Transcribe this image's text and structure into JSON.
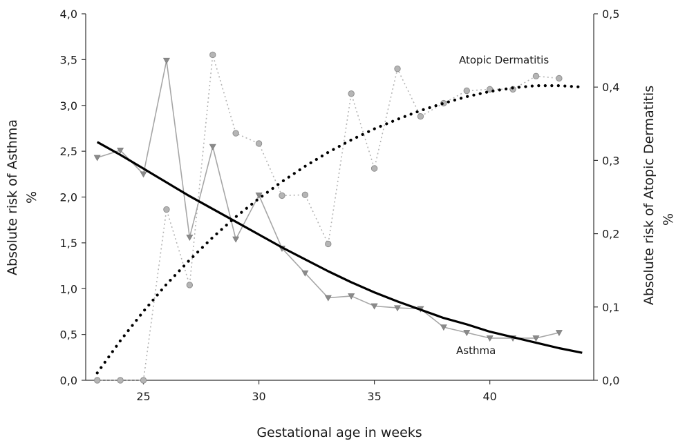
{
  "chart_data": {
    "type": "line",
    "xlabel": "Gestational age in weeks",
    "ylabel_left": "Absolute risk of Asthma",
    "ylabel_left_unit": "%",
    "ylabel_right": "Absolute risk of Atopic Dermatitis",
    "ylabel_right_unit": "%",
    "xlim": [
      22.5,
      44.5
    ],
    "ylim_left": [
      0,
      4.0
    ],
    "ylim_right": [
      0,
      0.5
    ],
    "x_ticks": [
      25,
      30,
      35,
      40
    ],
    "x_tick_labels": [
      "25",
      "30",
      "35",
      "40"
    ],
    "y_left_ticks": [
      0,
      0.5,
      1.0,
      1.5,
      2.0,
      2.5,
      3.0,
      3.5,
      4.0
    ],
    "y_left_tick_labels": [
      "0,0",
      "0,5",
      "1,0",
      "1,5",
      "2,0",
      "2,5",
      "3,0",
      "3,5",
      "4,0"
    ],
    "y_right_ticks": [
      0,
      0.1,
      0.2,
      0.3,
      0.4,
      0.5
    ],
    "y_right_tick_labels": [
      "0,0",
      "0,1",
      "0,2",
      "0,3",
      "0,4",
      "0,5"
    ],
    "grid": false,
    "annotations": {
      "atopic": "Atopic Dermatitis",
      "asthma": "Asthma"
    },
    "series": [
      {
        "id": "asthma-observed",
        "axis": "left",
        "style": "solid-thin-triangles",
        "color": "#a6a6a6",
        "x": [
          23,
          24,
          25,
          26,
          27,
          28,
          29,
          30,
          31,
          32,
          33,
          34,
          35,
          36,
          37,
          38,
          39,
          40,
          41,
          42,
          43
        ],
        "y": [
          2.43,
          2.51,
          2.25,
          3.49,
          1.56,
          2.55,
          1.54,
          2.02,
          1.44,
          1.17,
          0.9,
          0.92,
          0.81,
          0.79,
          0.78,
          0.58,
          0.52,
          0.46,
          0.46,
          0.46,
          0.52
        ]
      },
      {
        "id": "asthma-fitted",
        "axis": "left",
        "style": "solid-thick",
        "color": "#000000",
        "x": [
          23,
          24,
          25,
          26,
          27,
          28,
          29,
          30,
          31,
          32,
          33,
          34,
          35,
          36,
          37,
          38,
          39,
          40,
          41,
          42,
          43,
          44
        ],
        "y": [
          2.6,
          2.46,
          2.31,
          2.16,
          2.01,
          1.87,
          1.73,
          1.59,
          1.45,
          1.32,
          1.19,
          1.07,
          0.96,
          0.86,
          0.77,
          0.68,
          0.61,
          0.53,
          0.47,
          0.41,
          0.35,
          0.3
        ]
      },
      {
        "id": "atopic-observed",
        "axis": "right",
        "style": "dotted-thin-circles",
        "color": "#b3b3b3",
        "x": [
          23,
          24,
          25,
          26,
          27,
          28,
          29,
          30,
          31,
          32,
          33,
          34,
          35,
          36,
          37,
          38,
          39,
          40,
          41,
          42,
          43
        ],
        "y": [
          0.0,
          0.0,
          0.0,
          0.233,
          0.13,
          0.444,
          0.337,
          0.323,
          0.252,
          0.253,
          0.186,
          0.391,
          0.289,
          0.425,
          0.36,
          0.378,
          0.395,
          0.397,
          0.397,
          0.415,
          0.412
        ]
      },
      {
        "id": "atopic-fitted",
        "axis": "right",
        "style": "dotted-thick",
        "color": "#000000",
        "x": [
          23,
          24,
          25,
          26,
          27,
          28,
          29,
          30,
          31,
          32,
          33,
          34,
          35,
          36,
          37,
          38,
          39,
          40,
          41,
          42,
          43,
          44
        ],
        "y": [
          0.01,
          0.054,
          0.094,
          0.131,
          0.164,
          0.195,
          0.223,
          0.248,
          0.271,
          0.292,
          0.311,
          0.328,
          0.343,
          0.356,
          0.368,
          0.378,
          0.387,
          0.394,
          0.399,
          0.402,
          0.402,
          0.4
        ]
      }
    ]
  }
}
